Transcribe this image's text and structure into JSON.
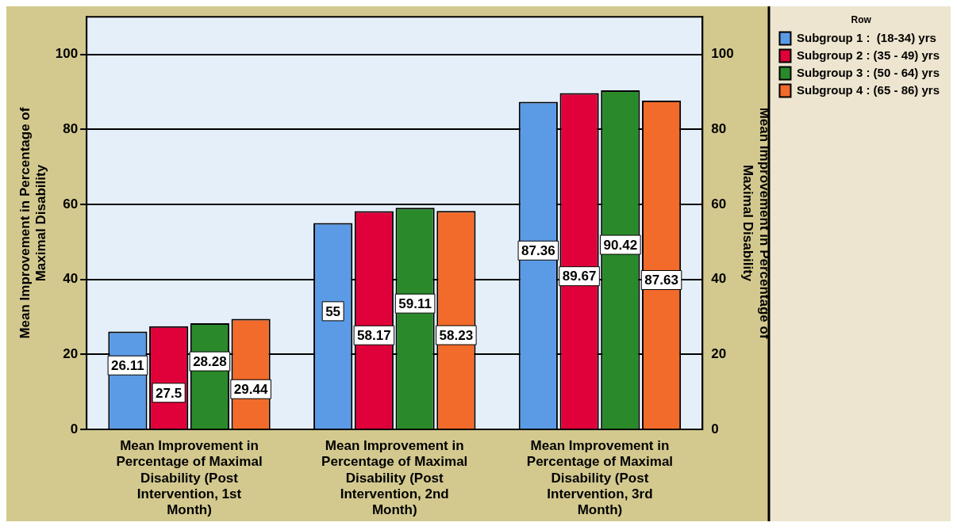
{
  "chart_data": {
    "type": "bar",
    "categories": [
      "Mean Improvement in Percentage of Maximal Disability (Post Intervention, 1st Month)",
      "Mean Improvement in Percentage of Maximal Disability (Post Intervention, 2nd Month)",
      "Mean Improvement in Percentage of Maximal Disability (Post Intervention, 3rd Month)"
    ],
    "series": [
      {
        "name": "Subgroup 1 :  (18-34) yrs",
        "color": "#5b9be6",
        "values": [
          26.11,
          55,
          87.36
        ]
      },
      {
        "name": "Subgroup 2 : (35 - 49) yrs",
        "color": "#e0003a",
        "values": [
          27.5,
          58.17,
          89.67
        ]
      },
      {
        "name": "Subgroup 3 : (50 - 64) yrs",
        "color": "#2a8a2a",
        "values": [
          28.28,
          59.11,
          90.42
        ]
      },
      {
        "name": "Subgroup 4 : (65 - 86) yrs",
        "color": "#f26b2a",
        "values": [
          29.44,
          58.23,
          87.63
        ]
      }
    ],
    "ylabel": "Mean Improvement in Percentage of Maximal Disability",
    "y2label": "Mean Improvement in Percentage of Maximal Disability",
    "ylim": [
      0,
      110
    ],
    "yticks": [
      0,
      20,
      40,
      60,
      80,
      100
    ],
    "y2lim": [
      0,
      110
    ],
    "y2ticks": [
      0,
      20,
      40,
      60,
      80,
      100
    ],
    "legend_title": "Row",
    "legend": "top right",
    "grid": "y",
    "data_labels": true
  }
}
